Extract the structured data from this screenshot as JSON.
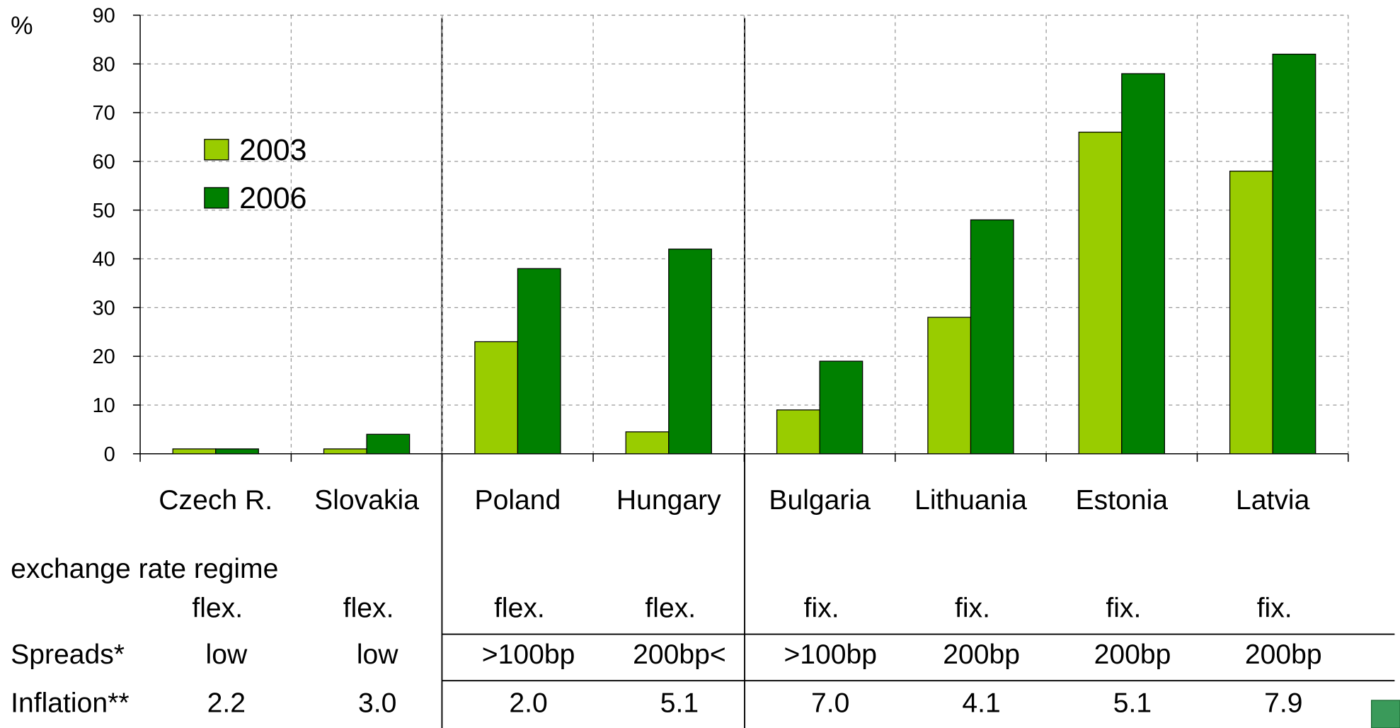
{
  "chart_data": {
    "type": "bar",
    "y_label": "%",
    "categories": [
      "Czech R.",
      "Slovakia",
      "Poland",
      "Hungary",
      "Bulgaria",
      "Lithuania",
      "Estonia",
      "Latvia"
    ],
    "series": [
      {
        "name": "2003",
        "color": "#99cc00",
        "values": [
          1,
          1,
          23,
          4.5,
          9,
          28,
          66,
          58
        ]
      },
      {
        "name": "2006",
        "color": "#008000",
        "values": [
          1,
          4,
          38,
          42,
          19,
          48,
          78,
          82
        ]
      }
    ],
    "ylim": [
      0,
      90
    ],
    "yticks": [
      0,
      10,
      20,
      30,
      40,
      50,
      60,
      70,
      80,
      90
    ],
    "grid": true,
    "table": {
      "rows": [
        {
          "label": "exchange rate regime",
          "values": [
            "flex.",
            "flex.",
            "flex.",
            "flex.",
            "fix.",
            "fix.",
            "fix.",
            "fix."
          ]
        },
        {
          "label": "Spreads*",
          "values": [
            "low",
            "low",
            ">100bp",
            "200bp<",
            ">100bp",
            "200bp",
            "200bp",
            "200bp"
          ]
        },
        {
          "label": "Inflation**",
          "values": [
            "2.2",
            "3.0",
            "2.0",
            "5.1",
            "7.0",
            "4.1",
            "5.1",
            "7.9"
          ]
        }
      ]
    }
  }
}
